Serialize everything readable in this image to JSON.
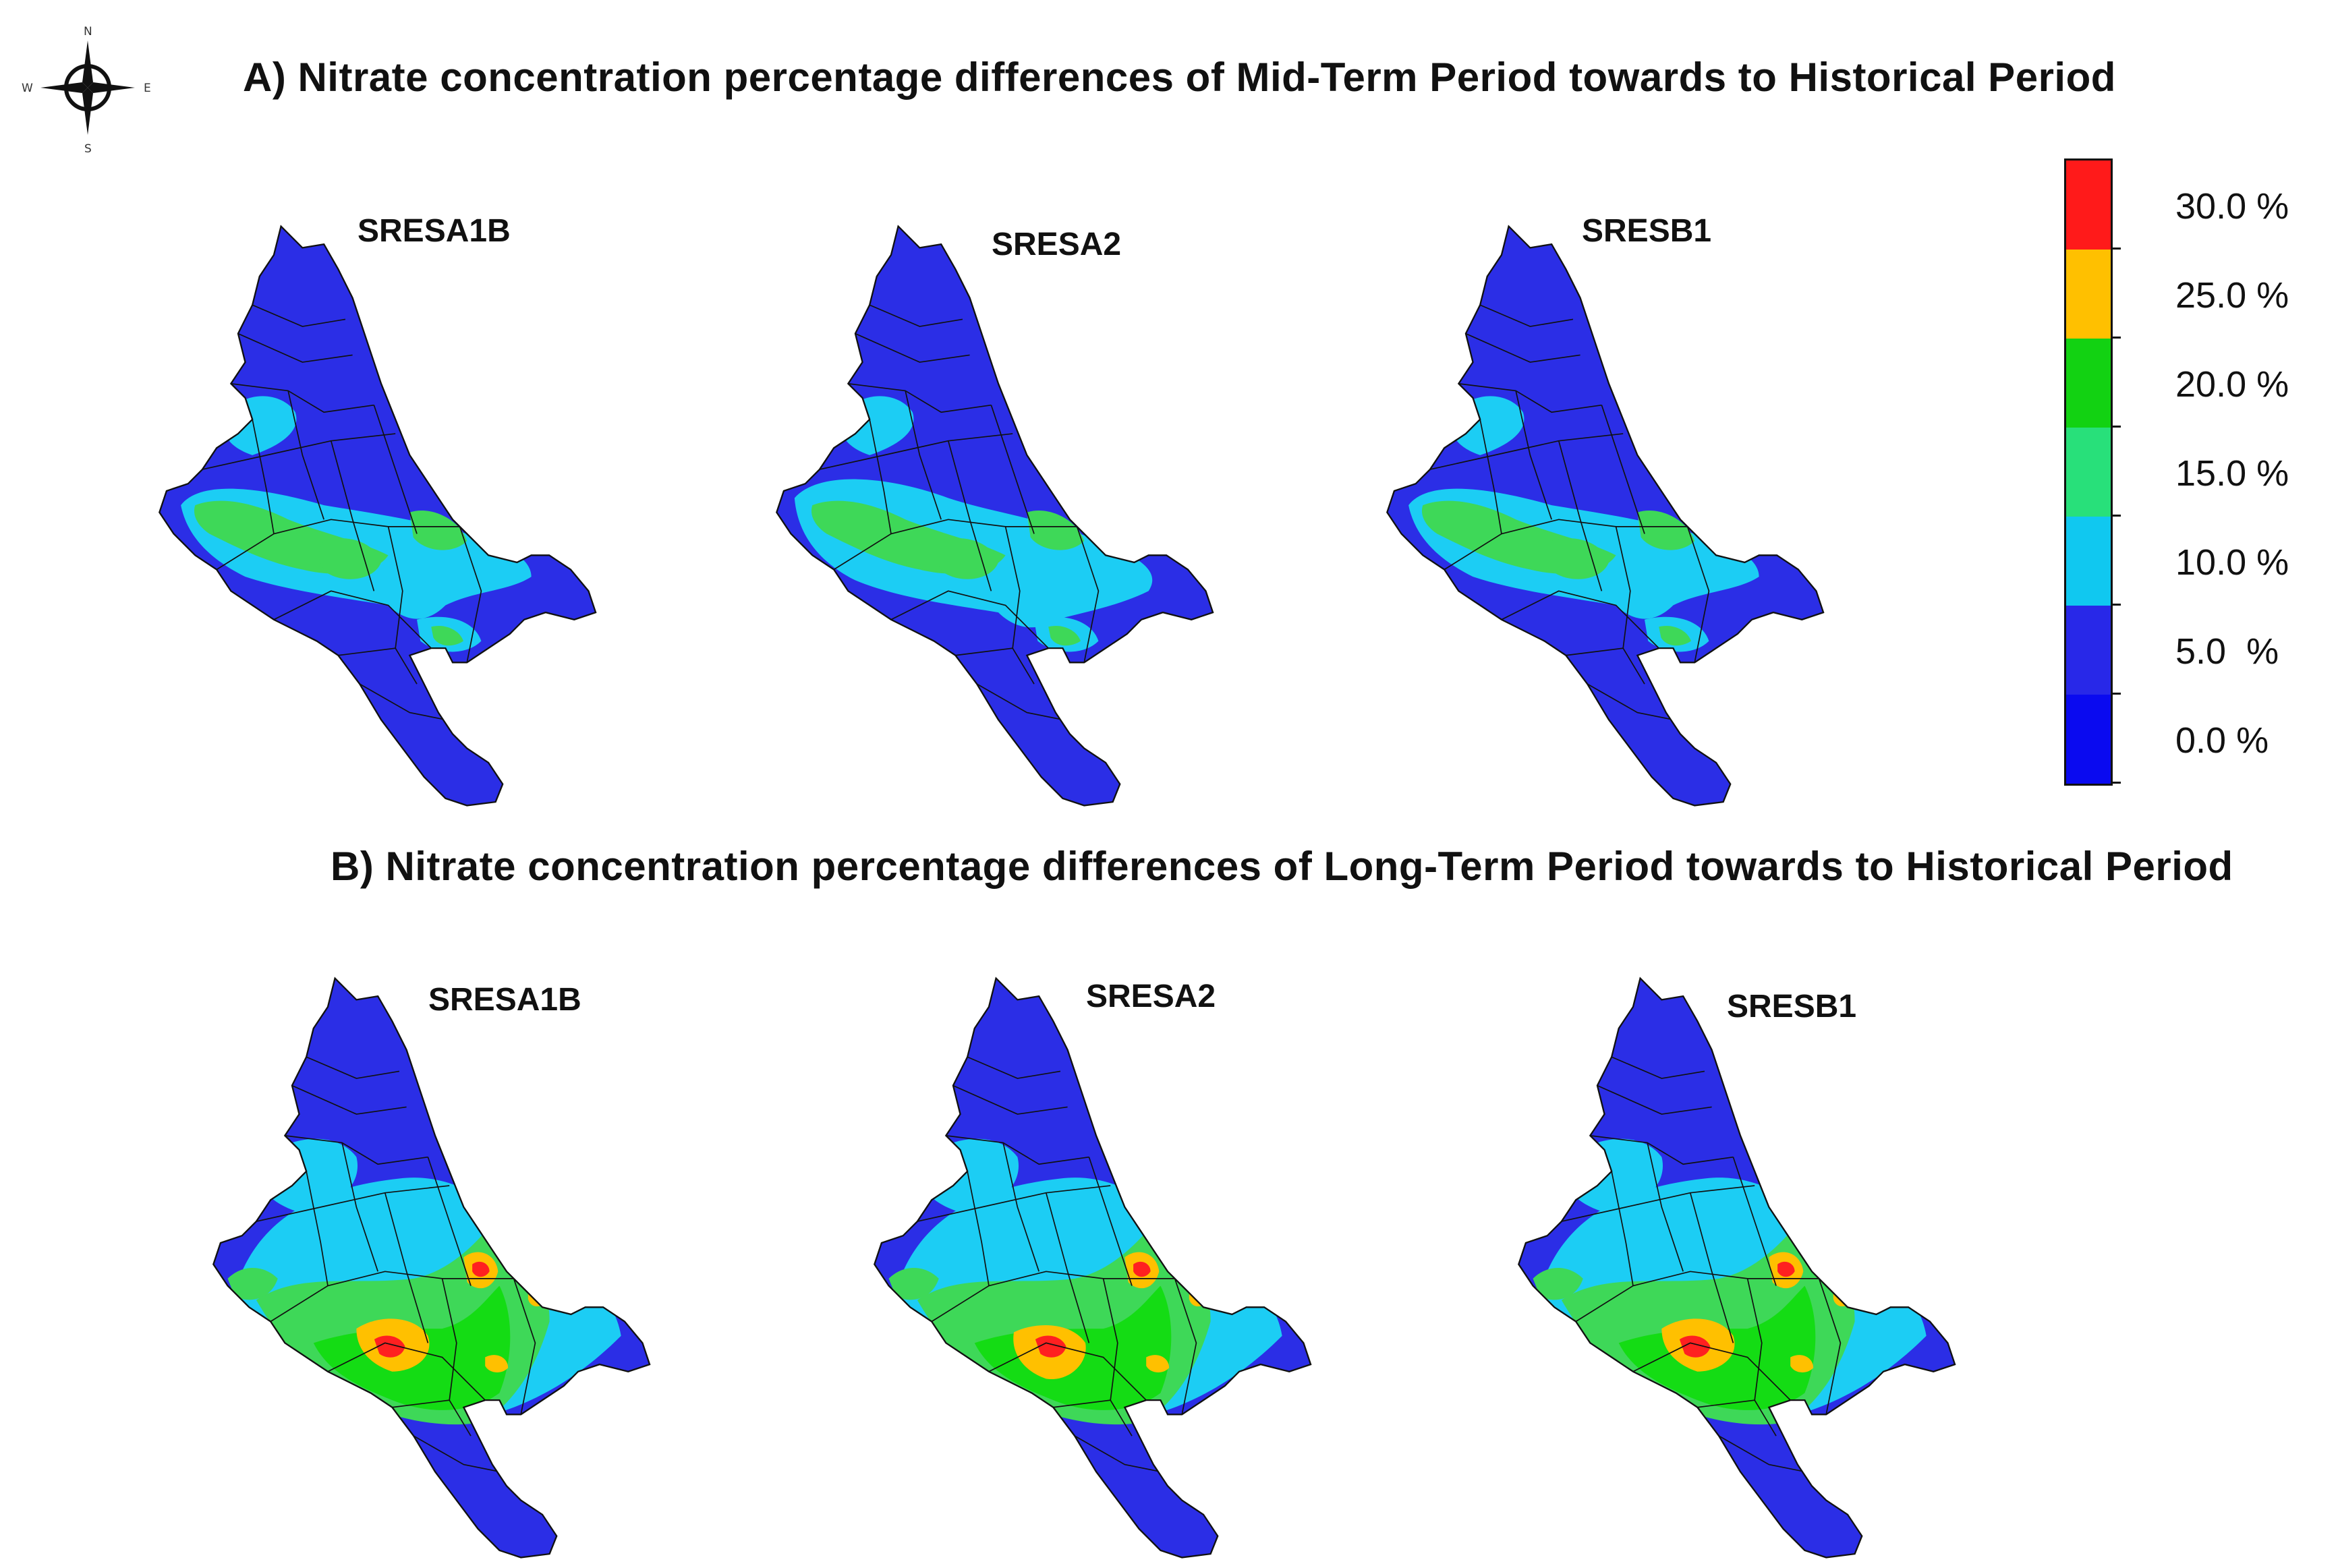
{
  "compass": {
    "north": "N",
    "south": "S",
    "east": "E",
    "west": "W",
    "icon": "compass-rose-icon"
  },
  "section_a": {
    "title": "A)   Nitrate concentration percentage differences of Mid-Term Period towards to Historical Period",
    "scenarios": [
      "SRESA1B",
      "SRESA2",
      "SRESB1"
    ]
  },
  "section_b": {
    "title": "B)   Nitrate concentration percentage differences of Long-Term Period towards to Historical Period",
    "scenarios": [
      "SRESA1B",
      "SRESA2",
      "SRESB1"
    ]
  },
  "legend": {
    "labels": [
      "30.0 %",
      "25.0 %",
      "20.0 %",
      "15.0 %",
      "10.0 %",
      "5.0  %",
      "0.0 %"
    ],
    "colors": [
      "#ff1a1a",
      "#ffc000",
      "#12d212",
      "#28e07a",
      "#10c8f0",
      "#2828e8",
      "#0a0af0"
    ]
  },
  "palette": {
    "base": "#2b2ee6",
    "light_blue": "#1ccdf4",
    "green": "#3ed858",
    "bright_green": "#14dc14",
    "orange": "#ffc000",
    "red": "#ff2020",
    "boundary": "#111111"
  }
}
